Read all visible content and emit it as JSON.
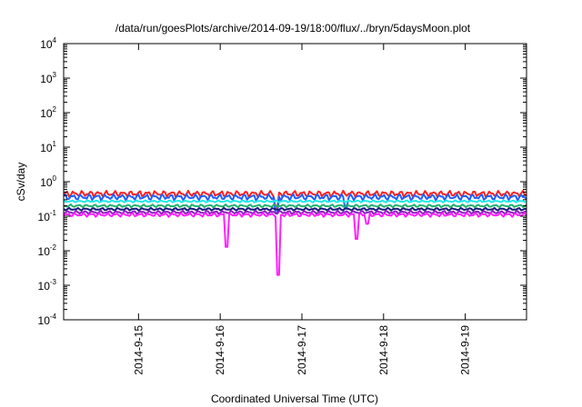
{
  "chart_data": {
    "type": "line",
    "title": "/data/run/goesPlots/archive/2014-09-19/18:00/flux/../bryn/5daysMoon.plot",
    "xlabel": "Coordinated Universal Time (UTC)",
    "ylabel": "cSv/day",
    "yscale": "log",
    "ylim": [
      0.0001,
      10000
    ],
    "xlim": [
      "2014-09-14 02:00",
      "2014-09-19 18:00"
    ],
    "grid": false,
    "legend": "none",
    "y_ticks": [
      {
        "base": "10",
        "exp": "-4",
        "value": 0.0001
      },
      {
        "base": "10",
        "exp": "-3",
        "value": 0.001
      },
      {
        "base": "10",
        "exp": "-2",
        "value": 0.01
      },
      {
        "base": "10",
        "exp": "-1",
        "value": 0.1
      },
      {
        "base": "10",
        "exp": "0",
        "value": 1
      },
      {
        "base": "10",
        "exp": "1",
        "value": 10
      },
      {
        "base": "10",
        "exp": "2",
        "value": 100
      },
      {
        "base": "10",
        "exp": "3",
        "value": 1000
      },
      {
        "base": "10",
        "exp": "4",
        "value": 10000
      }
    ],
    "x_ticks": [
      {
        "label": "2014-9-15",
        "value": "2014-09-15 00:00"
      },
      {
        "label": "2014-9-16",
        "value": "2014-09-16 00:00"
      },
      {
        "label": "2014-9-17",
        "value": "2014-09-17 00:00"
      },
      {
        "label": "2014-9-18",
        "value": "2014-09-18 00:00"
      },
      {
        "label": "2014-9-19",
        "value": "2014-09-19 00:00"
      }
    ],
    "series": [
      {
        "color": "#ff2020",
        "base": 0.45,
        "variation": 0.1,
        "dips": [
          {
            "x": "2014-09-16 16:30",
            "y": 0.16
          }
        ]
      },
      {
        "color": "#2060ff",
        "base": 0.36,
        "variation": 0.08,
        "dips": [
          {
            "x": "2014-09-16 16:30",
            "y": 0.12
          },
          {
            "x": "2014-09-17 13:00",
            "y": 0.17
          }
        ]
      },
      {
        "color": "#20e8e8",
        "base": 0.27,
        "variation": 0.02,
        "dips": []
      },
      {
        "color": "#20b070",
        "base": 0.2,
        "variation": 0.02,
        "dips": []
      },
      {
        "color": "#1a1a7a",
        "base": 0.16,
        "variation": 0.015,
        "dips": []
      },
      {
        "color": "#9020c0",
        "base": 0.13,
        "variation": 0.015,
        "dips": []
      },
      {
        "color": "#ff20ff",
        "base": 0.11,
        "variation": 0.015,
        "dips": [
          {
            "x": "2014-09-16 02:00",
            "y": 0.013
          },
          {
            "x": "2014-09-16 17:00",
            "y": 0.002
          },
          {
            "x": "2014-09-17 16:00",
            "y": 0.022
          },
          {
            "x": "2014-09-17 19:00",
            "y": 0.06
          }
        ]
      }
    ]
  }
}
